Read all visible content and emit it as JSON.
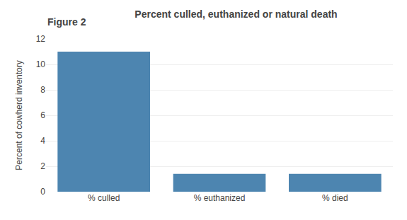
{
  "chart_data": {
    "type": "bar",
    "title": "Percent culled, euthanized or natural death",
    "annotations": [
      {
        "text": "Figure 2"
      }
    ],
    "categories": [
      "% culled",
      "% euthanized",
      "% died"
    ],
    "values": [
      11.0,
      1.4,
      1.4
    ],
    "color": "#4d85b0",
    "ylabel": "Percent of cowherd inventory",
    "ylim": [
      0,
      12
    ],
    "yticks": [
      0,
      2,
      4,
      6,
      8,
      10,
      12
    ],
    "grid": true
  }
}
